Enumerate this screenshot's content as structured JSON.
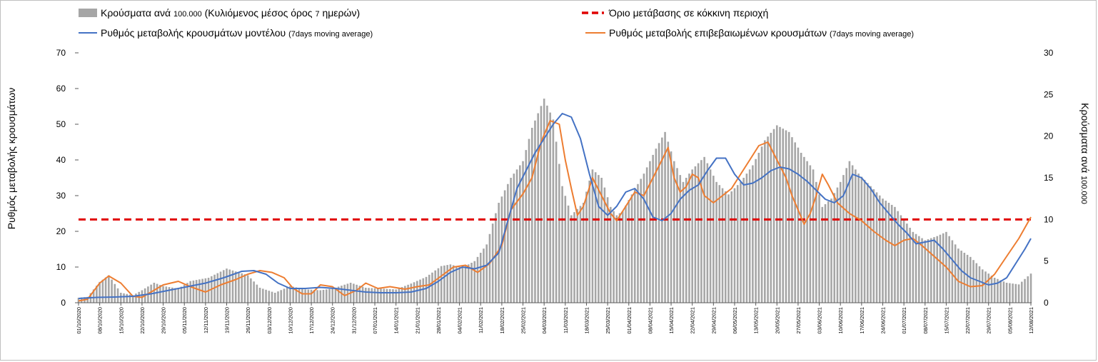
{
  "chart_data": {
    "type": "combo-bar-line",
    "legend": {
      "bars_main": "Κρούσματα ανά",
      "bars_small1": "100.000",
      "bars_main2": "(Κυλιόμενος μέσος όρος",
      "bars_small2": "7",
      "bars_main3": "ημερών)",
      "threshold": "Όριο μετάβασης σε κόκκινη περιοχή",
      "model_main": "Ρυθμός μεταβολής κρουσμάτων μοντέλου",
      "model_small": "(7days moving average)",
      "confirmed_main": "Ρυθμός μεταβολής επιβεβαιωμένων κρουσμάτων",
      "confirmed_small": "(7days moving average)"
    },
    "y_left": {
      "label": "Ρυθμός μεταβολής κρουσμάτων",
      "min": 0,
      "max": 70,
      "ticks": [
        "0",
        "10",
        "20",
        "30",
        "40",
        "50",
        "60",
        "70"
      ]
    },
    "y_right": {
      "label_main": "Κρούσματα ανά",
      "label_small": "100.000",
      "min": 0,
      "max": 30,
      "ticks": [
        "0",
        "5",
        "10",
        "15",
        "20",
        "25",
        "30"
      ]
    },
    "threshold_value_right_axis": 10,
    "x_range_days": [
      0,
      315
    ],
    "x_tick_labels": [
      "01/10/2020",
      "08/10/2020",
      "15/10/2020",
      "22/10/2020",
      "29/10/2020",
      "05/11/2020",
      "12/11/2020",
      "19/11/2020",
      "26/11/2020",
      "03/12/2020",
      "10/12/2020",
      "17/12/2020",
      "24/12/2020",
      "31/12/2020",
      "07/01/2021",
      "14/01/2021",
      "21/01/2021",
      "28/01/2021",
      "04/02/2021",
      "11/02/2021",
      "18/02/2021",
      "25/02/2021",
      "04/03/2021",
      "11/03/2021",
      "18/03/2021",
      "25/03/2021",
      "01/04/2021",
      "08/04/2021",
      "15/04/2021",
      "22/04/2021",
      "29/04/2021",
      "06/05/2021",
      "13/05/2021",
      "20/05/2021",
      "27/05/2021",
      "03/06/2021",
      "10/06/2021",
      "17/06/2021",
      "24/06/2021",
      "01/07/2021",
      "08/07/2021",
      "15/07/2021",
      "22/07/2021",
      "29/07/2021",
      "05/08/2021",
      "12/08/2021"
    ],
    "cases_per_100k_points": [
      [
        0,
        0.6
      ],
      [
        3,
        0.7
      ],
      [
        7,
        2.5
      ],
      [
        10,
        3.3
      ],
      [
        14,
        1.2
      ],
      [
        18,
        0.9
      ],
      [
        21,
        1.5
      ],
      [
        25,
        2.4
      ],
      [
        28,
        2.0
      ],
      [
        33,
        1.7
      ],
      [
        37,
        2.6
      ],
      [
        43,
        3.0
      ],
      [
        49,
        4.1
      ],
      [
        56,
        3.3
      ],
      [
        60,
        1.8
      ],
      [
        65,
        1.2
      ],
      [
        70,
        2.0
      ],
      [
        75,
        1.6
      ],
      [
        80,
        1.5
      ],
      [
        84,
        1.7
      ],
      [
        90,
        2.4
      ],
      [
        95,
        1.8
      ],
      [
        100,
        1.7
      ],
      [
        105,
        1.6
      ],
      [
        110,
        2.3
      ],
      [
        115,
        3.1
      ],
      [
        120,
        4.4
      ],
      [
        123,
        4.6
      ],
      [
        127,
        4.2
      ],
      [
        131,
        5.0
      ],
      [
        135,
        7.0
      ],
      [
        139,
        12.0
      ],
      [
        143,
        15.0
      ],
      [
        147,
        17.0
      ],
      [
        150,
        21.0
      ],
      [
        154,
        24.5
      ],
      [
        157,
        22.0
      ],
      [
        160,
        14.0
      ],
      [
        163,
        10.5
      ],
      [
        167,
        12.0
      ],
      [
        170,
        16.0
      ],
      [
        173,
        15.0
      ],
      [
        176,
        11.5
      ],
      [
        178,
        10.5
      ],
      [
        180,
        11.0
      ],
      [
        183,
        13.0
      ],
      [
        187,
        15.5
      ],
      [
        191,
        18.5
      ],
      [
        194,
        20.5
      ],
      [
        197,
        17.0
      ],
      [
        200,
        14.5
      ],
      [
        203,
        16.0
      ],
      [
        207,
        17.5
      ],
      [
        211,
        14.5
      ],
      [
        215,
        13.0
      ],
      [
        219,
        14.5
      ],
      [
        223,
        16.5
      ],
      [
        227,
        19.5
      ],
      [
        231,
        21.3
      ],
      [
        235,
        20.5
      ],
      [
        239,
        18.0
      ],
      [
        243,
        16.0
      ],
      [
        246,
        11.5
      ],
      [
        249,
        12.5
      ],
      [
        252,
        14.5
      ],
      [
        255,
        17.0
      ],
      [
        258,
        15.5
      ],
      [
        262,
        14.0
      ],
      [
        266,
        12.5
      ],
      [
        270,
        11.5
      ],
      [
        273,
        10.0
      ],
      [
        276,
        8.5
      ],
      [
        280,
        7.5
      ],
      [
        284,
        8.0
      ],
      [
        287,
        8.5
      ],
      [
        291,
        6.5
      ],
      [
        295,
        5.5
      ],
      [
        299,
        4.0
      ],
      [
        303,
        3.0
      ],
      [
        307,
        2.4
      ],
      [
        311,
        2.2
      ],
      [
        315,
        3.5
      ]
    ],
    "confirmed_rate_points": [
      [
        0,
        0.5
      ],
      [
        3,
        1.0
      ],
      [
        7,
        5.5
      ],
      [
        10,
        7.5
      ],
      [
        14,
        5.5
      ],
      [
        18,
        1.8
      ],
      [
        21,
        1.5
      ],
      [
        24,
        3.0
      ],
      [
        28,
        5.0
      ],
      [
        33,
        6.0
      ],
      [
        37,
        4.5
      ],
      [
        42,
        3.0
      ],
      [
        47,
        5.0
      ],
      [
        52,
        6.5
      ],
      [
        56,
        8.0
      ],
      [
        60,
        9.0
      ],
      [
        64,
        8.5
      ],
      [
        68,
        7.0
      ],
      [
        71,
        4.0
      ],
      [
        74,
        2.5
      ],
      [
        77,
        2.5
      ],
      [
        80,
        5.0
      ],
      [
        84,
        4.5
      ],
      [
        88,
        2.0
      ],
      [
        92,
        3.5
      ],
      [
        95,
        5.5
      ],
      [
        99,
        4.0
      ],
      [
        103,
        4.5
      ],
      [
        108,
        3.8
      ],
      [
        112,
        4.5
      ],
      [
        116,
        5.0
      ],
      [
        120,
        7.5
      ],
      [
        124,
        10.0
      ],
      [
        128,
        10.5
      ],
      [
        132,
        8.5
      ],
      [
        136,
        11.0
      ],
      [
        140,
        16.0
      ],
      [
        143,
        26.0
      ],
      [
        147,
        30.5
      ],
      [
        150,
        35.0
      ],
      [
        153,
        45.0
      ],
      [
        156,
        51.0
      ],
      [
        159,
        50.0
      ],
      [
        161,
        40.0
      ],
      [
        163,
        32.0
      ],
      [
        165,
        24.5
      ],
      [
        167,
        27.0
      ],
      [
        170,
        35.0
      ],
      [
        173,
        30.0
      ],
      [
        176,
        25.0
      ],
      [
        178,
        23.0
      ],
      [
        181,
        27.0
      ],
      [
        184,
        31.0
      ],
      [
        187,
        30.0
      ],
      [
        190,
        35.0
      ],
      [
        193,
        40.0
      ],
      [
        195,
        43.5
      ],
      [
        197,
        35.0
      ],
      [
        199,
        31.0
      ],
      [
        201,
        32.5
      ],
      [
        203,
        36.0
      ],
      [
        205,
        35.0
      ],
      [
        207,
        30.0
      ],
      [
        210,
        28.0
      ],
      [
        213,
        30.0
      ],
      [
        216,
        32.0
      ],
      [
        219,
        36.0
      ],
      [
        222,
        40.0
      ],
      [
        225,
        44.0
      ],
      [
        228,
        45.0
      ],
      [
        231,
        40.0
      ],
      [
        234,
        35.0
      ],
      [
        236,
        30.0
      ],
      [
        238,
        26.0
      ],
      [
        240,
        22.0
      ],
      [
        242,
        25.0
      ],
      [
        244,
        30.0
      ],
      [
        246,
        36.0
      ],
      [
        248,
        33.0
      ],
      [
        251,
        28.0
      ],
      [
        255,
        25.0
      ],
      [
        259,
        23.0
      ],
      [
        263,
        20.0
      ],
      [
        267,
        17.5
      ],
      [
        270,
        16.0
      ],
      [
        273,
        17.5
      ],
      [
        276,
        18.0
      ],
      [
        279,
        16.0
      ],
      [
        283,
        13.0
      ],
      [
        287,
        10.0
      ],
      [
        291,
        6.0
      ],
      [
        295,
        4.5
      ],
      [
        299,
        4.8
      ],
      [
        303,
        8.0
      ],
      [
        307,
        13.0
      ],
      [
        311,
        18.0
      ],
      [
        315,
        24.0
      ]
    ],
    "model_rate_points": [
      [
        0,
        1.2
      ],
      [
        6,
        1.5
      ],
      [
        12,
        1.6
      ],
      [
        18,
        1.8
      ],
      [
        24,
        2.5
      ],
      [
        30,
        3.5
      ],
      [
        36,
        4.5
      ],
      [
        42,
        5.5
      ],
      [
        48,
        7.0
      ],
      [
        54,
        8.8
      ],
      [
        58,
        9.0
      ],
      [
        62,
        8.0
      ],
      [
        66,
        5.5
      ],
      [
        70,
        4.0
      ],
      [
        75,
        4.0
      ],
      [
        80,
        4.3
      ],
      [
        85,
        4.0
      ],
      [
        90,
        3.5
      ],
      [
        95,
        3.0
      ],
      [
        100,
        2.8
      ],
      [
        105,
        2.8
      ],
      [
        110,
        3.0
      ],
      [
        115,
        4.0
      ],
      [
        119,
        6.0
      ],
      [
        123,
        8.5
      ],
      [
        127,
        10.0
      ],
      [
        131,
        9.5
      ],
      [
        135,
        10.5
      ],
      [
        139,
        14.0
      ],
      [
        142,
        23.0
      ],
      [
        145,
        32.0
      ],
      [
        148,
        37.0
      ],
      [
        151,
        42.0
      ],
      [
        154,
        46.0
      ],
      [
        157,
        50.0
      ],
      [
        160,
        53.0
      ],
      [
        163,
        52.0
      ],
      [
        166,
        46.0
      ],
      [
        169,
        36.0
      ],
      [
        172,
        27.0
      ],
      [
        175,
        24.5
      ],
      [
        178,
        27.0
      ],
      [
        181,
        31.0
      ],
      [
        184,
        32.0
      ],
      [
        187,
        29.0
      ],
      [
        190,
        24.0
      ],
      [
        193,
        23.0
      ],
      [
        196,
        25.0
      ],
      [
        199,
        29.0
      ],
      [
        202,
        31.5
      ],
      [
        205,
        33.0
      ],
      [
        208,
        37.0
      ],
      [
        211,
        40.5
      ],
      [
        214,
        40.5
      ],
      [
        217,
        36.0
      ],
      [
        220,
        33.0
      ],
      [
        223,
        33.5
      ],
      [
        226,
        35.0
      ],
      [
        229,
        37.0
      ],
      [
        232,
        38.0
      ],
      [
        235,
        37.5
      ],
      [
        238,
        36.0
      ],
      [
        241,
        34.0
      ],
      [
        244,
        31.5
      ],
      [
        247,
        29.0
      ],
      [
        250,
        28.0
      ],
      [
        253,
        30.0
      ],
      [
        256,
        36.0
      ],
      [
        259,
        35.0
      ],
      [
        262,
        32.0
      ],
      [
        265,
        28.0
      ],
      [
        268,
        25.0
      ],
      [
        271,
        22.0
      ],
      [
        274,
        19.5
      ],
      [
        277,
        16.5
      ],
      [
        280,
        17.0
      ],
      [
        283,
        17.5
      ],
      [
        286,
        15.0
      ],
      [
        289,
        12.0
      ],
      [
        292,
        9.0
      ],
      [
        295,
        7.0
      ],
      [
        298,
        6.0
      ],
      [
        301,
        5.0
      ],
      [
        304,
        5.5
      ],
      [
        307,
        7.0
      ],
      [
        310,
        11.0
      ],
      [
        313,
        15.0
      ],
      [
        315,
        18.0
      ]
    ]
  }
}
